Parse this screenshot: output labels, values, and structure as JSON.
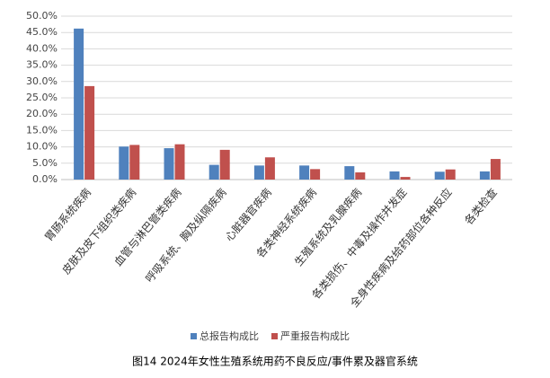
{
  "chart_data": {
    "type": "bar",
    "title": "图14  2024年女性生殖系统用药不良反应/事件累及器官系统",
    "categories": [
      "胃肠系统疾病",
      "皮肤及皮下组织类疾病",
      "血管与淋巴管类疾病",
      "呼吸系统、胸及纵隔疾病",
      "心脏器官疾病",
      "各类神经系统疾病",
      "生殖系统及乳腺疾病",
      "各类损伤、中毒及操作并发症",
      "全身性疾病及给药部位各种反应",
      "各类检查"
    ],
    "series": [
      {
        "name": "总报告构成比",
        "color": "#4f81bd",
        "values": [
          46.2,
          10.1,
          9.6,
          4.5,
          4.3,
          4.3,
          4.1,
          2.5,
          2.4,
          2.5
        ]
      },
      {
        "name": "严重报告构成比",
        "color": "#c0504d",
        "values": [
          28.6,
          10.6,
          10.8,
          9.1,
          6.8,
          3.2,
          2.2,
          0.8,
          3.1,
          6.3
        ]
      }
    ],
    "ylim": [
      0,
      50
    ],
    "yticks": [
      {
        "value": 0,
        "label": "0.0%"
      },
      {
        "value": 5,
        "label": "5.0%"
      },
      {
        "value": 10,
        "label": "10.0%"
      },
      {
        "value": 15,
        "label": "15.0%"
      },
      {
        "value": 20,
        "label": "20.0%"
      },
      {
        "value": 25,
        "label": "25.0%"
      },
      {
        "value": 30,
        "label": "30.0%"
      },
      {
        "value": 35,
        "label": "35.0%"
      },
      {
        "value": 40,
        "label": "40.0%"
      },
      {
        "value": 45,
        "label": "45.0%"
      },
      {
        "value": 50,
        "label": "50.0%"
      }
    ],
    "grid": true,
    "legend": "bottom"
  }
}
